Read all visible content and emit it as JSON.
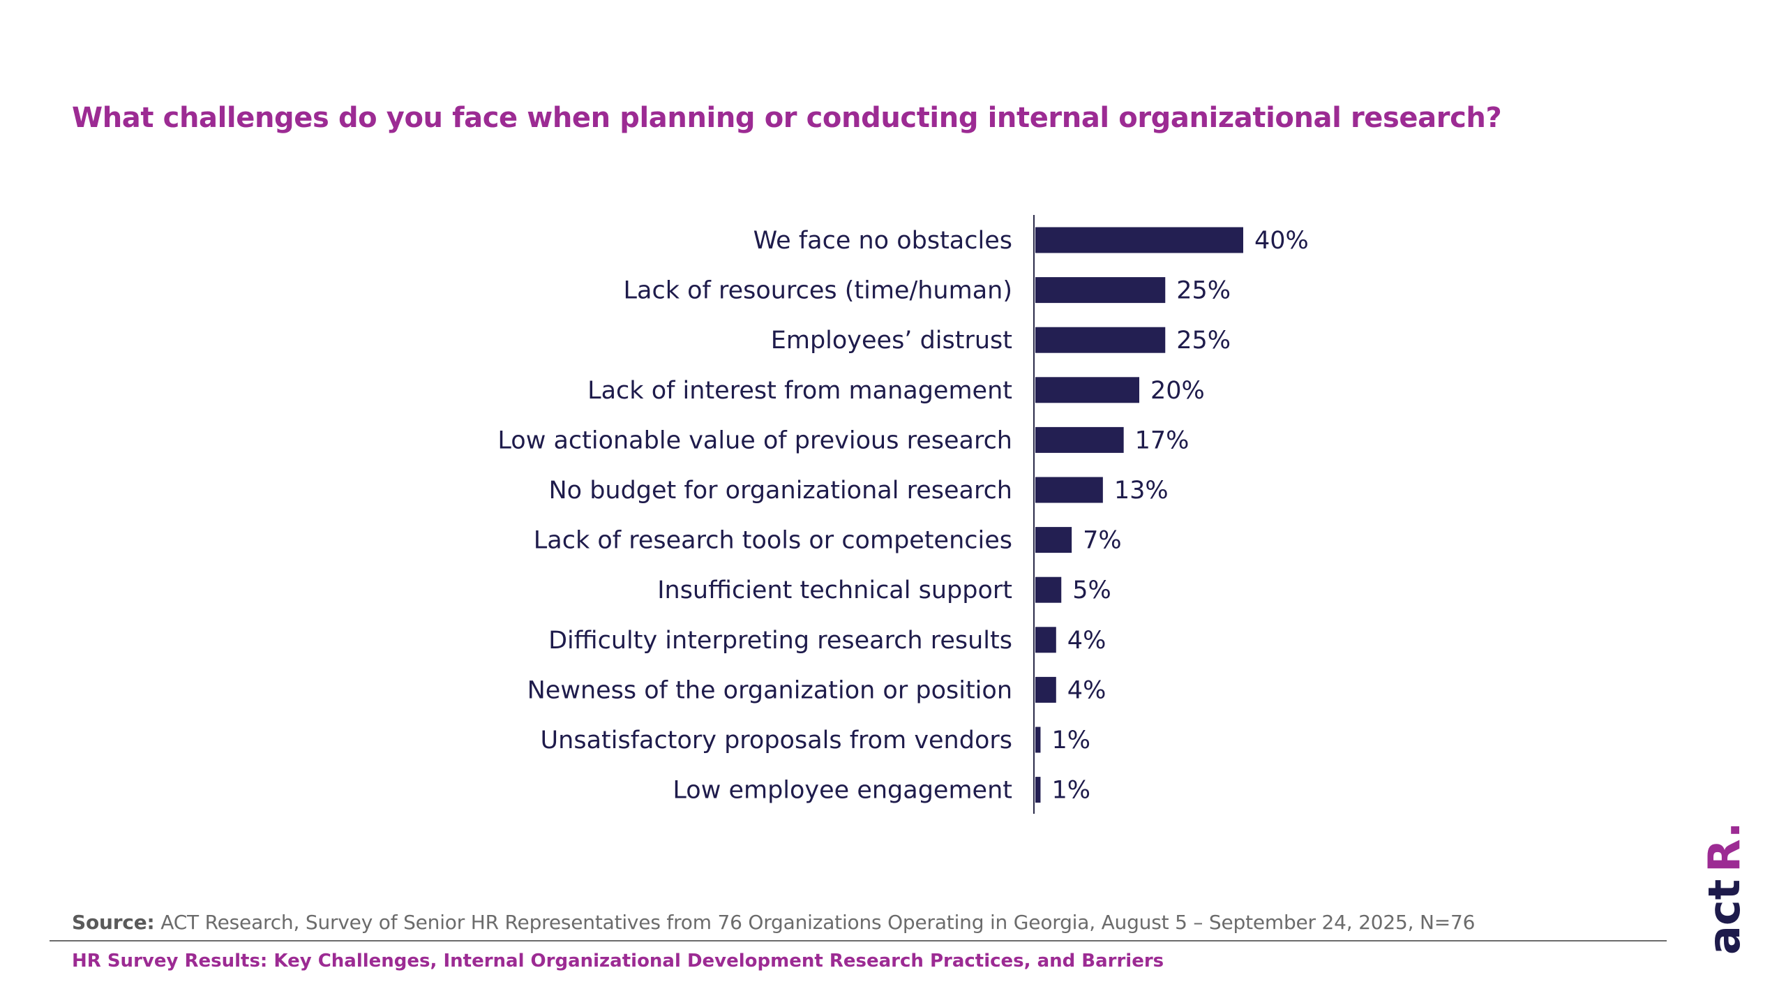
{
  "title": "What challenges do you face when planning or conducting internal organizational research?",
  "colors": {
    "accent": "#9c2b93",
    "bar": "#231f52",
    "text": "#1e1b4b",
    "muted": "#6b6b6b"
  },
  "chart_data": {
    "type": "bar",
    "orientation": "horizontal",
    "title": "What challenges do you face when planning or conducting internal organizational research?",
    "xlabel": "",
    "ylabel": "",
    "xlim": [
      0,
      100
    ],
    "grid": false,
    "categories": [
      "We face no obstacles",
      "Lack of resources (time/human)",
      "Employees’ distrust",
      "Lack of interest from management",
      "Low actionable value of previous research",
      "No budget for organizational research",
      "Lack of research tools or competencies",
      "Insufficient technical support",
      "Difficulty interpreting research results",
      "Newness of the organization or position",
      "Unsatisfactory proposals from vendors",
      "Low employee engagement"
    ],
    "values": [
      40,
      25,
      25,
      20,
      17,
      13,
      7,
      5,
      4,
      4,
      1,
      1
    ],
    "value_labels": [
      "40%",
      "25%",
      "25%",
      "20%",
      "17%",
      "13%",
      "7%",
      "5%",
      "4%",
      "4%",
      "1%",
      "1%"
    ]
  },
  "source": {
    "label": "Source:",
    "text": " ACT Research, Survey of Senior HR Representatives from 76 Organizations Operating in Georgia, August 5 – September 24, 2025, N=76"
  },
  "footer": {
    "title": "HR Survey Results: Key Challenges, Internal Organizational Development Research Practices, and Barriers"
  },
  "logo": {
    "text": "act",
    "mark": "R."
  }
}
